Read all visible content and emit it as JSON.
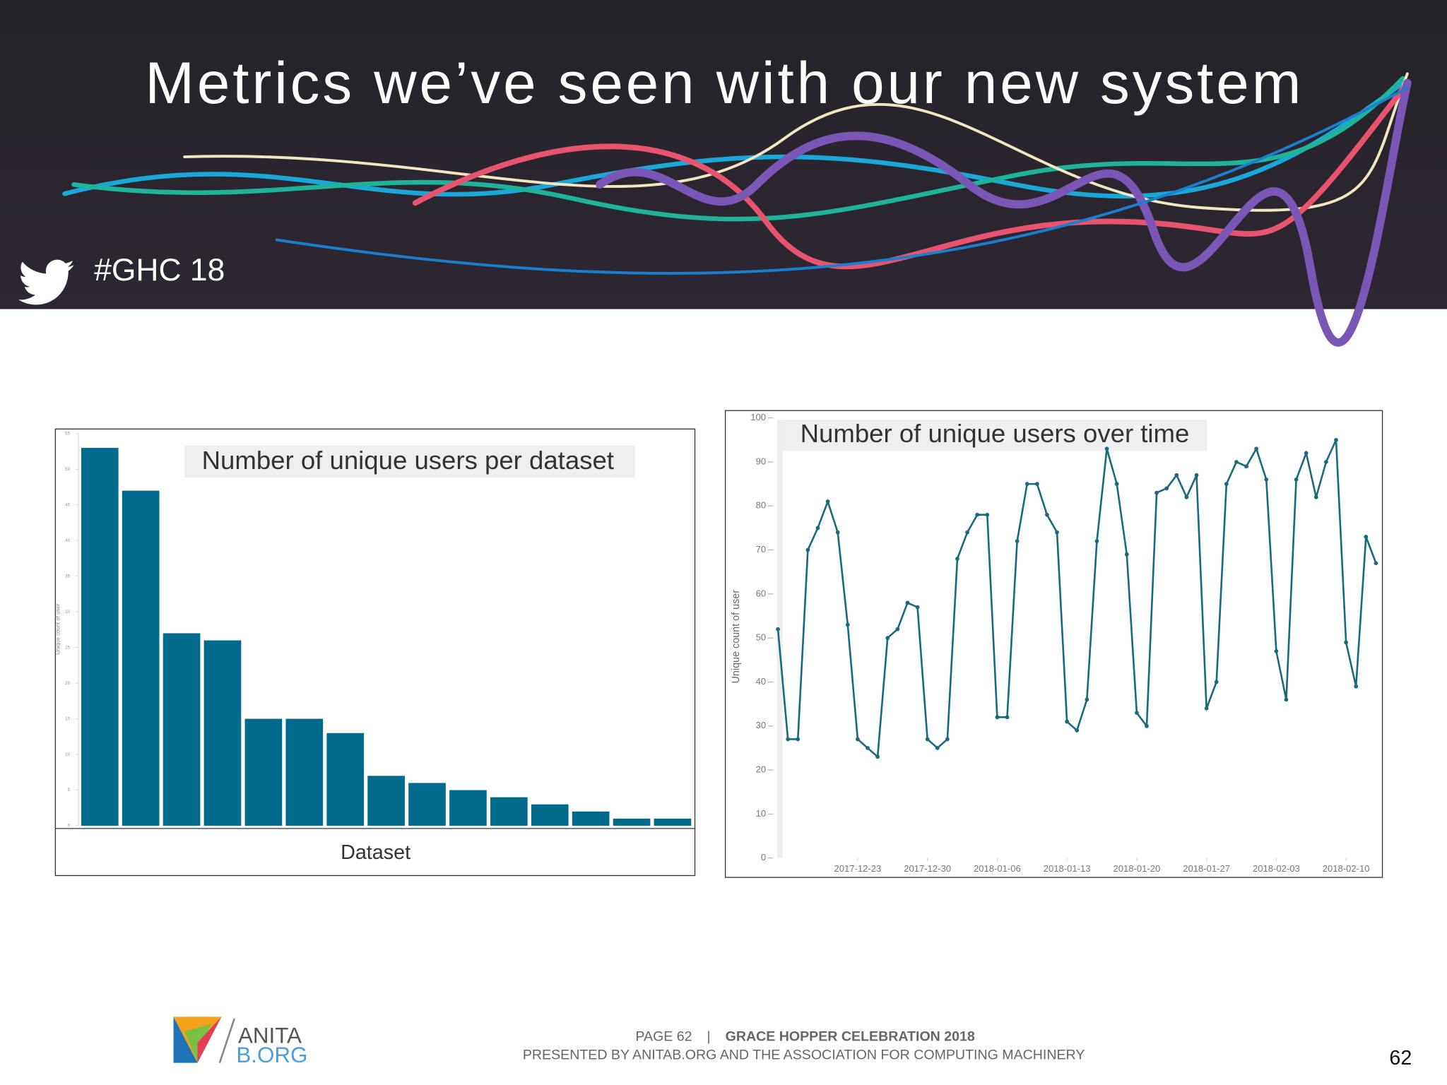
{
  "title": "Metrics we’ve seen with our new system",
  "hashtag": "#GHC 18",
  "footer": {
    "logo_top": "ANITA",
    "logo_bottom": "B.ORG",
    "page": "PAGE 62",
    "separator": "|",
    "event": "GRACE HOPPER CELEBRATION 2018",
    "presented": "PRESENTED BY ANITAB.ORG AND THE ASSOCIATION FOR COMPUTING MACHINERY",
    "page_number": "62"
  },
  "chart_data": [
    {
      "type": "bar",
      "title": "Number of unique users per dataset",
      "x_label": "Dataset",
      "y_label": "Unique count of user",
      "categories": [
        null,
        null,
        null,
        null,
        null,
        null,
        null,
        null,
        null,
        null,
        null,
        null,
        null,
        null,
        null
      ],
      "values": [
        53,
        47,
        27,
        26,
        15,
        15,
        13,
        7,
        6,
        5,
        4,
        3,
        2,
        1,
        1
      ],
      "color": "#006b8c",
      "ylim": [
        0,
        55
      ],
      "yticks": [
        0,
        5,
        10,
        15,
        20,
        25,
        30,
        35,
        40,
        45,
        50,
        55
      ],
      "grid": false
    },
    {
      "type": "line",
      "title": "Number of unique users over time",
      "y_label": "Unique count of user",
      "x": [
        "2017-12-15",
        "2017-12-16",
        "2017-12-17",
        "2017-12-18",
        "2017-12-19",
        "2017-12-20",
        "2017-12-21",
        "2017-12-22",
        "2017-12-23",
        "2017-12-24",
        "2017-12-25",
        "2017-12-26",
        "2017-12-27",
        "2017-12-28",
        "2017-12-29",
        "2017-12-30",
        "2017-12-31",
        "2018-01-01",
        "2018-01-02",
        "2018-01-03",
        "2018-01-04",
        "2018-01-05",
        "2018-01-06",
        "2018-01-07",
        "2018-01-08",
        "2018-01-09",
        "2018-01-10",
        "2018-01-11",
        "2018-01-12",
        "2018-01-13",
        "2018-01-14",
        "2018-01-15",
        "2018-01-16",
        "2018-01-17",
        "2018-01-18",
        "2018-01-19",
        "2018-01-20",
        "2018-01-21",
        "2018-01-22",
        "2018-01-23",
        "2018-01-24",
        "2018-01-25",
        "2018-01-26",
        "2018-01-27",
        "2018-01-28",
        "2018-01-29",
        "2018-01-30",
        "2018-01-31",
        "2018-02-01",
        "2018-02-02",
        "2018-02-03",
        "2018-02-04",
        "2018-02-05",
        "2018-02-06",
        "2018-02-07",
        "2018-02-08",
        "2018-02-09",
        "2018-02-10",
        "2018-02-11",
        "2018-02-12",
        "2018-02-13"
      ],
      "series": [
        {
          "name": "Unique count of user",
          "color": "#1a6b7a",
          "values": [
            52,
            27,
            27,
            70,
            75,
            81,
            74,
            53,
            27,
            25,
            23,
            50,
            52,
            58,
            57,
            27,
            25,
            27,
            68,
            74,
            78,
            78,
            32,
            32,
            72,
            85,
            85,
            78,
            74,
            31,
            29,
            36,
            72,
            93,
            85,
            69,
            33,
            30,
            83,
            84,
            87,
            82,
            87,
            34,
            40,
            85,
            90,
            89,
            93,
            86,
            47,
            36,
            86,
            92,
            82,
            90,
            95,
            49,
            39,
            73,
            67
          ]
        }
      ],
      "xlim": [
        "2017-12-15",
        "2018-02-13"
      ],
      "xticks": [
        "2017-12-23",
        "2017-12-30",
        "2018-01-06",
        "2018-01-13",
        "2018-01-20",
        "2018-01-27",
        "2018-02-03",
        "2018-02-10"
      ],
      "ylim": [
        0,
        100
      ],
      "yticks": [
        0,
        10,
        20,
        30,
        40,
        50,
        60,
        70,
        80,
        90,
        100
      ],
      "grid": false
    }
  ]
}
